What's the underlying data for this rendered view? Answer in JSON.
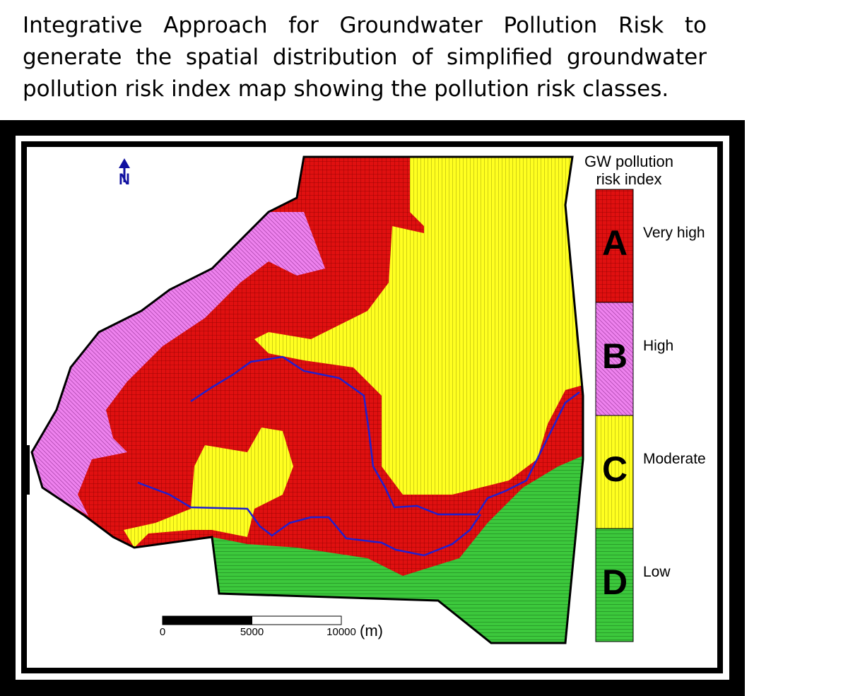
{
  "title": "Integrative Approach for Groundwater Pollution Risk to generate the spatial distribution of simplified groundwater pollution risk index map showing the pollution risk classes.",
  "map": {
    "north_label": "N",
    "legend": {
      "title_lines": [
        "GW pollution",
        "risk index"
      ],
      "classes": [
        {
          "letter": "A",
          "label": "Very high"
        },
        {
          "letter": "B",
          "label": "High"
        },
        {
          "letter": "C",
          "label": "Moderate"
        },
        {
          "letter": "D",
          "label": "Low"
        }
      ]
    },
    "scale_bar": {
      "ticks": [
        0,
        5000,
        10000
      ],
      "unit": "(m)"
    }
  }
}
